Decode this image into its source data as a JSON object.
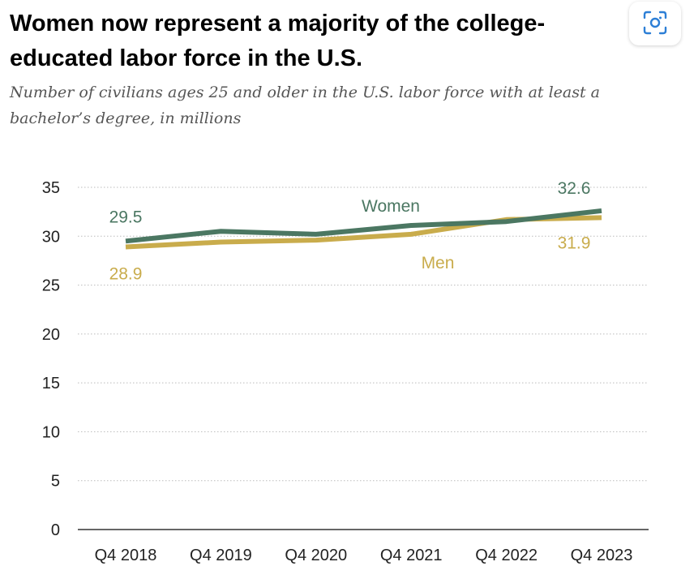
{
  "title": "Women now represent a majority of the college-educated labor force in the U.S.",
  "subtitle": "Number of civilians ages 25 and older in the U.S. labor force with at least a bachelor’s degree, in millions",
  "icons": {
    "scan": "visual-lookup-icon"
  },
  "colors": {
    "women": "#4b7762",
    "men": "#c9ac4c",
    "grid": "#bbbbbb",
    "axis": "#333333"
  },
  "chart_data": {
    "type": "line",
    "title": "Women now represent a majority of the college-educated labor force in the U.S.",
    "subtitle": "Number of civilians ages 25 and older in the U.S. labor force with at least a bachelor’s degree, in millions",
    "categories": [
      "Q4 2018",
      "Q4 2019",
      "Q4 2020",
      "Q4 2021",
      "Q4 2022",
      "Q4 2023"
    ],
    "yticks": [
      0,
      5,
      10,
      15,
      20,
      25,
      30,
      35
    ],
    "ylim": [
      0,
      35
    ],
    "grid": true,
    "series": [
      {
        "name": "Women",
        "values": [
          29.5,
          30.5,
          30.2,
          31.1,
          31.5,
          32.6
        ],
        "data_labels": {
          "first": "29.5",
          "last": "32.6"
        }
      },
      {
        "name": "Men",
        "values": [
          28.9,
          29.4,
          29.6,
          30.2,
          31.7,
          31.9
        ],
        "data_labels": {
          "first": "28.9",
          "last": "31.9"
        }
      }
    ]
  }
}
